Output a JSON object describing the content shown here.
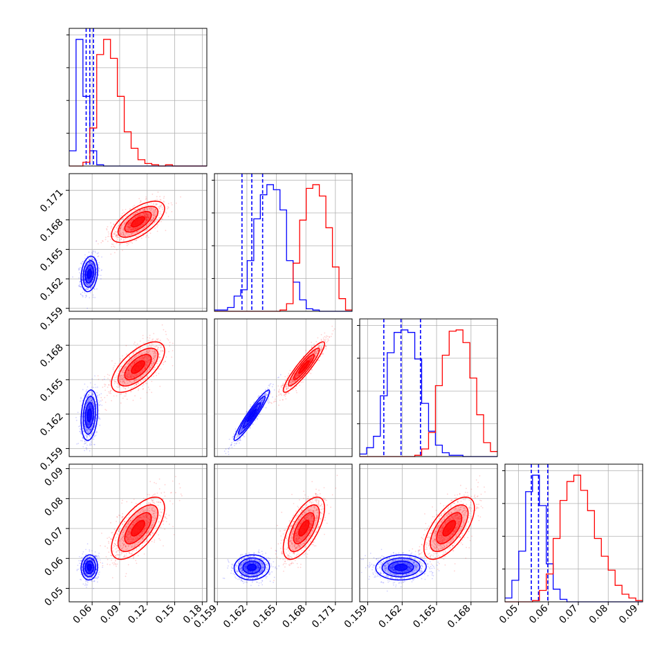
{
  "chart_data": {
    "type": "corner",
    "params": [
      {
        "ticks": [
          "0.06",
          "0.09",
          "0.12",
          "0.15",
          "0.18"
        ],
        "tick_values": [
          0.06,
          0.09,
          0.12,
          0.15,
          0.18
        ],
        "range": [
          0.035,
          0.185
        ]
      },
      {
        "ticks": [
          "0.159",
          "0.162",
          "0.165",
          "0.168",
          "0.171"
        ],
        "tick_values": [
          0.159,
          0.162,
          0.165,
          0.168,
          0.171
        ],
        "range": [
          0.1587,
          0.1727
        ]
      },
      {
        "ticks": [
          "0.159",
          "0.162",
          "0.165",
          "0.168"
        ],
        "tick_values": [
          0.159,
          0.162,
          0.165,
          0.168
        ],
        "range": [
          0.1583,
          0.1703
        ]
      },
      {
        "ticks": [
          "0.05",
          "0.06",
          "0.07",
          "0.08",
          "0.09"
        ],
        "tick_values": [
          0.05,
          0.06,
          0.07,
          0.08,
          0.09
        ],
        "range": [
          0.0455,
          0.0915
        ]
      }
    ],
    "series": [
      {
        "color": "#0000ff",
        "means": [
          0.057,
          0.1625,
          0.1619,
          0.057
        ],
        "sigmas": [
          0.0045,
          0.0009,
          0.0011,
          0.0021
        ],
        "quantile_lines": [
          [
            0.0535,
            0.0575,
            0.0615
          ],
          [
            0.1615,
            0.1625,
            0.1636
          ],
          [
            0.1604,
            0.1619,
            0.1636
          ],
          [
            0.0543,
            0.0567,
            0.0598
          ]
        ],
        "correlations": {
          "1-0": 0.2,
          "2-0": 0.2,
          "2-1": 0.95,
          "3-0": 0.05,
          "3-1": 0.05,
          "3-2": 0.05
        },
        "hists": [
          [
            0.12,
            1.0,
            0.55,
            0.12,
            0.01,
            0,
            0,
            0,
            0,
            0,
            0,
            0,
            0,
            0,
            0,
            0,
            0,
            0,
            0,
            0
          ],
          [
            0.01,
            0.01,
            0.03,
            0.12,
            0.17,
            0.4,
            0.73,
            0.92,
            1.0,
            0.96,
            0.8,
            0.4,
            0.23,
            0.09,
            0.02,
            0.01,
            0,
            0,
            0,
            0,
            0
          ],
          [
            0.02,
            0.07,
            0.16,
            0.48,
            0.82,
            0.98,
            1.0,
            0.98,
            0.77,
            0.42,
            0.2,
            0.09,
            0.03,
            0.01,
            0.01,
            0,
            0,
            0,
            0,
            0
          ],
          [
            0.03,
            0.17,
            0.4,
            0.87,
            1.0,
            0.76,
            0.3,
            0.1,
            0.02,
            0,
            0,
            0,
            0,
            0,
            0,
            0,
            0,
            0,
            0,
            0
          ]
        ]
      },
      {
        "color": "#ff0000",
        "means": [
          0.11,
          0.1678,
          0.1661,
          0.0701
        ],
        "sigmas": [
          0.0145,
          0.00105,
          0.0011,
          0.0052
        ],
        "quantile_lines": [],
        "correlations": {
          "1-0": 0.65,
          "2-0": 0.65,
          "2-1": 0.92,
          "3-0": 0.65,
          "3-1": 0.65,
          "3-2": 0.65
        },
        "hists": [
          [
            0,
            0,
            0.03,
            0.3,
            0.88,
            1.0,
            0.85,
            0.55,
            0.27,
            0.14,
            0.05,
            0.02,
            0.01,
            0,
            0.01,
            0,
            0,
            0,
            0,
            0
          ],
          [
            0,
            0,
            0,
            0,
            0,
            0,
            0,
            0,
            0,
            0,
            0.01,
            0.06,
            0.38,
            0.72,
            0.97,
            1.0,
            0.91,
            0.66,
            0.35,
            0.1,
            0.01
          ],
          [
            0,
            0,
            0,
            0,
            0,
            0,
            0,
            0,
            0.01,
            0.06,
            0.19,
            0.56,
            0.8,
            0.99,
            1.0,
            0.9,
            0.62,
            0.33,
            0.11,
            0.04
          ],
          [
            0,
            0,
            0,
            0,
            0.01,
            0.09,
            0.22,
            0.5,
            0.8,
            0.95,
            1.0,
            0.88,
            0.72,
            0.5,
            0.36,
            0.25,
            0.13,
            0.06,
            0.03,
            0.01
          ]
        ]
      }
    ],
    "grid": true
  }
}
